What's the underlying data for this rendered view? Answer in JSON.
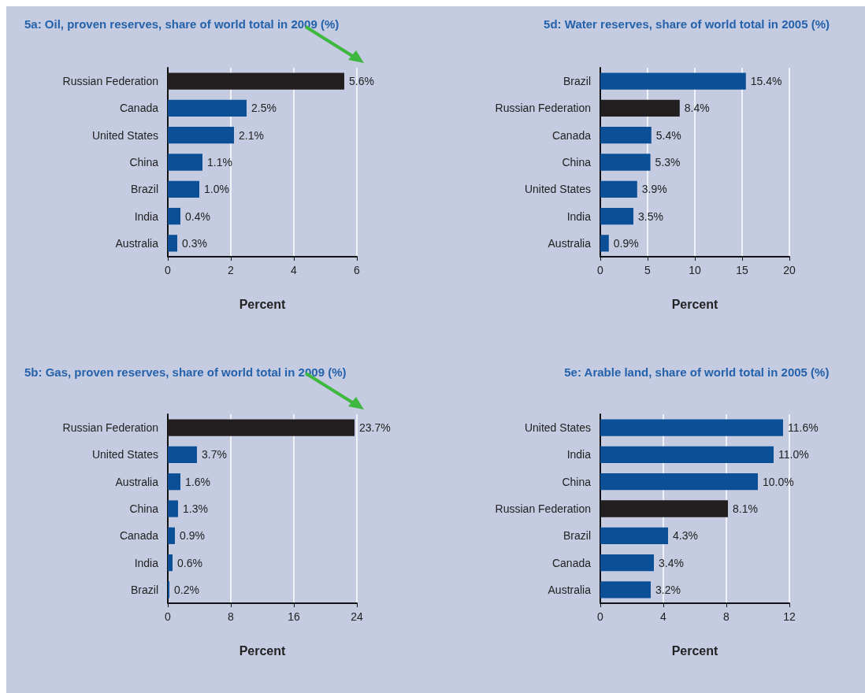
{
  "chart_data": [
    {
      "type": "bar",
      "orientation": "horizontal",
      "title": "5a: Oil, proven reserves, share of world total in 2009 (%)",
      "xlabel": "Percent",
      "categories": [
        "Russian Federation",
        "Canada",
        "United States",
        "China",
        "Brazil",
        "India",
        "Australia"
      ],
      "values": [
        5.6,
        2.5,
        2.1,
        1.1,
        1.0,
        0.4,
        0.3
      ],
      "colors": [
        "#231f20",
        "#0b4f96",
        "#0b4f96",
        "#0b4f96",
        "#0b4f96",
        "#0b4f96",
        "#0b4f96"
      ],
      "value_labels": [
        "5.6%",
        "2.5%",
        "2.1%",
        "1.1%",
        "1.0%",
        "0.4%",
        "0.3%"
      ],
      "xlim": [
        0,
        6
      ],
      "xticks": [
        0,
        2,
        4,
        6
      ],
      "grid": "x"
    },
    {
      "type": "bar",
      "orientation": "horizontal",
      "title": "5d: Water reserves, share of world total in 2005 (%)",
      "xlabel": "Percent",
      "categories": [
        "Brazil",
        "Russian Federation",
        "Canada",
        "China",
        "United States",
        "India",
        "Australia"
      ],
      "values": [
        15.4,
        8.4,
        5.4,
        5.3,
        3.9,
        3.5,
        0.9
      ],
      "colors": [
        "#0b4f96",
        "#231f20",
        "#0b4f96",
        "#0b4f96",
        "#0b4f96",
        "#0b4f96",
        "#0b4f96"
      ],
      "value_labels": [
        "15.4%",
        "8.4%",
        "5.4%",
        "5.3%",
        "3.9%",
        "3.5%",
        "0.9%"
      ],
      "xlim": [
        0,
        20
      ],
      "xticks": [
        0,
        5,
        10,
        15,
        20
      ],
      "grid": "x"
    },
    {
      "type": "bar",
      "orientation": "horizontal",
      "title": "5b: Gas, proven reserves, share of world total in 2009 (%)",
      "xlabel": "Percent",
      "categories": [
        "Russian Federation",
        "United States",
        "Australia",
        "China",
        "Canada",
        "India",
        "Brazil"
      ],
      "values": [
        23.7,
        3.7,
        1.6,
        1.3,
        0.9,
        0.6,
        0.2
      ],
      "colors": [
        "#231f20",
        "#0b4f96",
        "#0b4f96",
        "#0b4f96",
        "#0b4f96",
        "#0b4f96",
        "#0b4f96"
      ],
      "value_labels": [
        "23.7%",
        "3.7%",
        "1.6%",
        "1.3%",
        "0.9%",
        "0.6%",
        "0.2%"
      ],
      "xlim": [
        0,
        24
      ],
      "xticks": [
        0,
        8,
        16,
        24
      ],
      "grid": "x"
    },
    {
      "type": "bar",
      "orientation": "horizontal",
      "title": "5e: Arable land, share of world total in 2005 (%)",
      "xlabel": "Percent",
      "categories": [
        "United States",
        "India",
        "China",
        "Russian Federation",
        "Brazil",
        "Canada",
        "Australia"
      ],
      "values": [
        11.6,
        11.0,
        10.0,
        8.1,
        4.3,
        3.4,
        3.2
      ],
      "colors": [
        "#0b4f96",
        "#0b4f96",
        "#0b4f96",
        "#231f20",
        "#0b4f96",
        "#0b4f96",
        "#0b4f96"
      ],
      "value_labels": [
        "11.6%",
        "11.0%",
        "10.0%",
        "8.1%",
        "4.3%",
        "3.4%",
        "3.2%"
      ],
      "xlim": [
        0,
        12
      ],
      "xticks": [
        0,
        4,
        8,
        12
      ],
      "grid": "x"
    }
  ]
}
